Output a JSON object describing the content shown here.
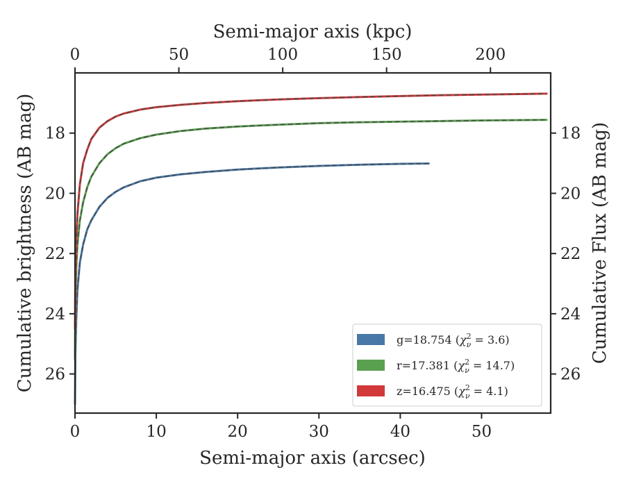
{
  "chart_data": {
    "type": "line",
    "title": "",
    "xlabel": "Semi-major axis (arcsec)",
    "ylabel": "Cumulative brightness (AB mag)",
    "x2label": "Semi-major axis (kpc)",
    "y2label": "Cumulative Flux (AB mag)",
    "xlim": [
      0,
      58.5
    ],
    "ylim": [
      27.3,
      16.0
    ],
    "x2lim": [
      0,
      229
    ],
    "y_inverted": true,
    "x_ticks": [
      "0",
      "10",
      "20",
      "30",
      "40",
      "50"
    ],
    "y_ticks": [
      "18",
      "20",
      "22",
      "24",
      "26"
    ],
    "x2_ticks": [
      "0",
      "50",
      "100",
      "150",
      "200"
    ],
    "y2_ticks": [
      "18",
      "20",
      "22",
      "24",
      "26"
    ],
    "grid": false,
    "legend_position": "lower-right",
    "series": [
      {
        "name": "g=18.754 ($\\chi^2_\\nu = 3.6$)",
        "legend_main": "g=18.754 (",
        "legend_symbol": "χ",
        "legend_sup": "2",
        "legend_sub": "ν",
        "legend_rest": " = 3.6)",
        "color": "#4878a8",
        "x": [
          0.0,
          0.05,
          0.15,
          0.3,
          0.6,
          1.0,
          1.5,
          2.0,
          3.0,
          4.0,
          5.0,
          6.0,
          8.0,
          10.0,
          13.0,
          16.0,
          20.0,
          25.0,
          30.0,
          35.0,
          40.0,
          43.5
        ],
        "y": [
          27.0,
          25.4,
          24.2,
          23.2,
          22.3,
          21.7,
          21.2,
          20.9,
          20.45,
          20.15,
          19.95,
          19.8,
          19.6,
          19.48,
          19.37,
          19.29,
          19.21,
          19.14,
          19.09,
          19.05,
          19.02,
          19.01
        ]
      },
      {
        "name": "r=17.381 ($\\chi^2_\\nu = 14.7$)",
        "legend_main": "r=17.381 (",
        "legend_symbol": "χ",
        "legend_sup": "2",
        "legend_sub": "ν",
        "legend_rest": " = 14.7)",
        "color": "#59a14f",
        "x": [
          0.0,
          0.05,
          0.15,
          0.3,
          0.6,
          1.0,
          1.5,
          2.0,
          3.0,
          4.0,
          5.0,
          6.0,
          8.0,
          10.0,
          13.0,
          16.0,
          20.0,
          25.0,
          30.0,
          35.0,
          40.0,
          45.0,
          50.0,
          58.0
        ],
        "y": [
          25.5,
          23.6,
          22.5,
          21.7,
          20.9,
          20.3,
          19.8,
          19.45,
          19.0,
          18.7,
          18.5,
          18.35,
          18.17,
          18.05,
          17.93,
          17.85,
          17.78,
          17.72,
          17.67,
          17.64,
          17.62,
          17.6,
          17.58,
          17.56
        ]
      },
      {
        "name": "z=16.475 ($\\chi^2_\\nu = 4.1$)",
        "legend_main": "z=16.475 (",
        "legend_symbol": "χ",
        "legend_sup": "2",
        "legend_sub": "ν",
        "legend_rest": " = 4.1)",
        "color": "#d1393a",
        "x": [
          0.0,
          0.05,
          0.15,
          0.3,
          0.6,
          1.0,
          1.5,
          2.0,
          3.0,
          4.0,
          5.0,
          6.0,
          8.0,
          10.0,
          13.0,
          16.0,
          20.0,
          25.0,
          30.0,
          35.0,
          40.0,
          45.0,
          50.0,
          58.0
        ],
        "y": [
          24.5,
          22.8,
          21.6,
          20.7,
          19.7,
          19.0,
          18.55,
          18.2,
          17.82,
          17.6,
          17.45,
          17.35,
          17.22,
          17.14,
          17.06,
          17.0,
          16.94,
          16.88,
          16.84,
          16.8,
          16.77,
          16.74,
          16.72,
          16.69
        ]
      }
    ]
  }
}
